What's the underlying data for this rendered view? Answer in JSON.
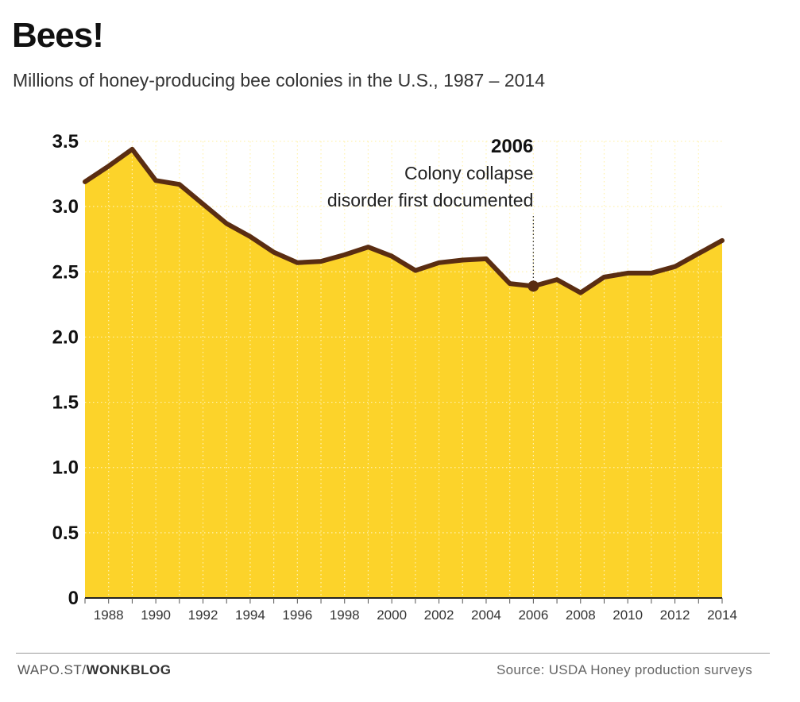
{
  "chart_data": {
    "type": "area",
    "title": "Bees!",
    "subtitle": "Millions of honey-producing bee colonies in the U.S., 1987 – 2014",
    "xlabel": "",
    "ylabel": "",
    "xlim": [
      1987,
      2014
    ],
    "ylim": [
      0,
      3.5
    ],
    "yticks": [
      0,
      0.5,
      1.0,
      1.5,
      2.0,
      2.5,
      3.0,
      3.5
    ],
    "ytick_labels": [
      "0",
      "0.5",
      "1.0",
      "1.5",
      "2.0",
      "2.5",
      "3.0",
      "3.5"
    ],
    "xticks": [
      1988,
      1990,
      1992,
      1994,
      1996,
      1998,
      2000,
      2002,
      2004,
      2006,
      2008,
      2010,
      2012,
      2014
    ],
    "xtick_labels": [
      "1988",
      "1990",
      "1992",
      "1994",
      "1996",
      "1998",
      "2000",
      "2002",
      "2004",
      "2006",
      "2008",
      "2010",
      "2012",
      "2014"
    ],
    "grid": true,
    "series": [
      {
        "name": "Honey-producing bee colonies (millions)",
        "x": [
          1987,
          1988,
          1989,
          1990,
          1991,
          1992,
          1993,
          1994,
          1995,
          1996,
          1997,
          1998,
          1999,
          2000,
          2001,
          2002,
          2003,
          2004,
          2005,
          2006,
          2007,
          2008,
          2009,
          2010,
          2011,
          2012,
          2013,
          2014
        ],
        "values": [
          3.19,
          3.31,
          3.44,
          3.2,
          3.17,
          3.02,
          2.87,
          2.77,
          2.65,
          2.57,
          2.58,
          2.63,
          2.69,
          2.62,
          2.51,
          2.57,
          2.59,
          2.6,
          2.41,
          2.39,
          2.44,
          2.34,
          2.46,
          2.49,
          2.49,
          2.54,
          2.64,
          2.74
        ]
      }
    ],
    "colors": {
      "fill": "#fcd32a",
      "line": "#5a2d12",
      "grid": "#fff2b0"
    },
    "annotation": {
      "year": 2006,
      "value": 2.39,
      "heading": "2006",
      "line1": "Colony collapse",
      "line2": "disorder first documented"
    }
  },
  "footer": {
    "credit_prefix": "WAPO.ST/",
    "credit_strong": "WONKBLOG",
    "source": "Source: USDA Honey production surveys"
  }
}
